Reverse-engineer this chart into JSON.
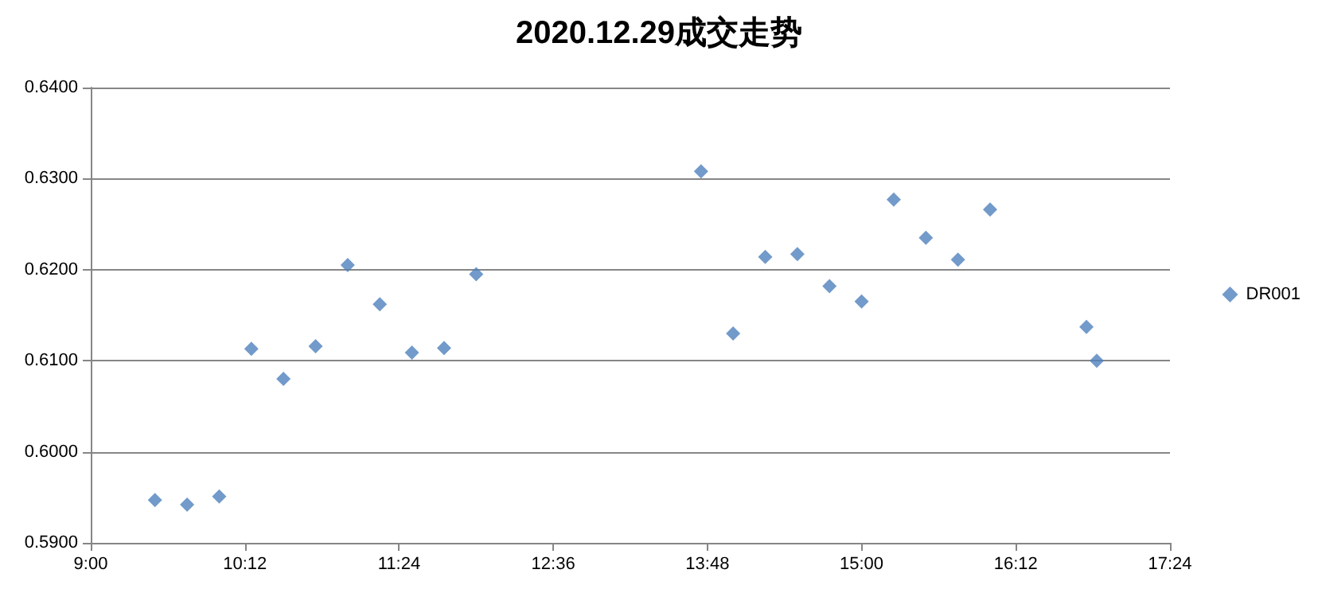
{
  "chart_data": {
    "type": "scatter",
    "title": "2020.12.29成交走势",
    "x": [
      9.5,
      9.75,
      10,
      10.25,
      10.5,
      10.75,
      11,
      11.25,
      11.5,
      11.75,
      12,
      13.75,
      14,
      14.25,
      14.5,
      14.75,
      15,
      15.25,
      15.5,
      15.75,
      16,
      16.75,
      16.83
    ],
    "series": [
      {
        "name": "DR001",
        "color": "#4f81bd",
        "values": [
          0.5947,
          0.5942,
          0.5951,
          0.6113,
          0.608,
          0.6116,
          0.6205,
          0.6162,
          0.6109,
          0.6114,
          0.6195,
          0.6308,
          0.613,
          0.6214,
          0.6217,
          0.6182,
          0.6165,
          0.6277,
          0.6235,
          0.6211,
          0.6266,
          0.6137,
          0.61
        ]
      }
    ],
    "xlim": [
      9,
      17.4
    ],
    "xticks": [
      {
        "value": 9,
        "label": "9:00"
      },
      {
        "value": 10.2,
        "label": "10:12"
      },
      {
        "value": 11.4,
        "label": "11:24"
      },
      {
        "value": 12.6,
        "label": "12:36"
      },
      {
        "value": 13.8,
        "label": "13:48"
      },
      {
        "value": 15,
        "label": "15:00"
      },
      {
        "value": 16.2,
        "label": "16:12"
      },
      {
        "value": 17.4,
        "label": "17:24"
      }
    ],
    "ylim": [
      0.59,
      0.64
    ],
    "yticks": [
      {
        "value": 0.59,
        "label": "0.5900"
      },
      {
        "value": 0.6,
        "label": "0.6000"
      },
      {
        "value": 0.61,
        "label": "0.6100"
      },
      {
        "value": 0.62,
        "label": "0.6200"
      },
      {
        "value": 0.63,
        "label": "0.6300"
      },
      {
        "value": 0.64,
        "label": "0.6400"
      }
    ],
    "grid": "y",
    "legend": "right",
    "marker": "diamond"
  }
}
